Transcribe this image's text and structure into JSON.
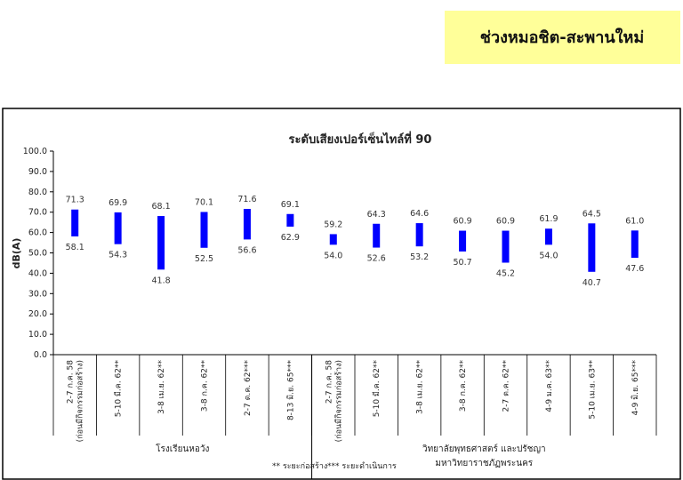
{
  "header": {
    "title": "ช่วงหมอชิต-สะพานใหม่"
  },
  "chart_data": {
    "type": "range-bar",
    "title": "ระดับเสียงเปอร์เซ็นไทล์ที่ 90",
    "y_label": "dB(A)",
    "categories": [
      [
        "2-7 ก.ค. 58",
        "(ก่อนมีกิจกรรมก่อสร้าง)"
      ],
      [
        "5-10 มี.ค. 62**"
      ],
      [
        "3-8 เม.ย. 62**"
      ],
      [
        "3-8 ก.ค. 62**"
      ],
      [
        "2-7 ต.ค. 62***"
      ],
      [
        "8-13 มิ.ย. 65***"
      ],
      [
        "2-7 ก.ค. 58",
        "(ก่อนมีกิจกรรมก่อสร้าง)"
      ],
      [
        "5-10 มี.ค. 62**"
      ],
      [
        "3-8 เม.ย. 62**"
      ],
      [
        "3-8 ก.ค. 62**"
      ],
      [
        "2-7 ต.ค. 62**"
      ],
      [
        "4-9 ม.ค. 63**"
      ],
      [
        "5-10 เม.ย. 63**"
      ],
      [
        "4-9 มิ.ย. 65***"
      ]
    ],
    "color": "#0000ff",
    "series": [
      {
        "values": [
          71.3,
          69.9,
          68.1,
          70.1,
          71.6,
          69.1,
          59.2,
          64.3,
          64.6,
          60.9,
          60.9,
          61.9,
          64.5,
          61.0
        ],
        "value_labels": [
          "71.3",
          "69.9",
          "68.1",
          "70.1",
          "71.6",
          "69.1",
          "59.2",
          "64.3",
          "64.6",
          "60.9",
          "60.9",
          "61.9",
          "64.5",
          "61.0"
        ]
      },
      {
        "values": [
          58.1,
          54.3,
          41.8,
          52.5,
          56.6,
          62.9,
          54.0,
          52.6,
          53.2,
          50.7,
          45.2,
          54.0,
          40.7,
          47.6
        ],
        "value_labels": [
          "58.1",
          "54.3",
          "41.8",
          "52.5",
          "56.6",
          "62.9",
          "54.0",
          "52.6",
          "53.2",
          "50.7",
          "45.2",
          "54.0",
          "40.7",
          "47.6"
        ]
      }
    ],
    "ylim": [
      0,
      100
    ],
    "yticks": [
      {
        "value": 0,
        "label": "0.0"
      },
      {
        "value": 10,
        "label": "10.0"
      },
      {
        "value": 20,
        "label": "20.0"
      },
      {
        "value": 30,
        "label": "30.0"
      },
      {
        "value": 40,
        "label": "40.0"
      },
      {
        "value": 50,
        "label": "50.0"
      },
      {
        "value": 60,
        "label": "60.0"
      },
      {
        "value": 70,
        "label": "70.0"
      },
      {
        "value": 80,
        "label": "80.0"
      },
      {
        "value": 90,
        "label": "90.0"
      },
      {
        "value": 100,
        "label": "100.0"
      }
    ],
    "groups": [
      {
        "label": [
          "โรงเรียนหอวัง"
        ],
        "count": 6
      },
      {
        "label": [
          "วิทยาลัยพุทธศาสตร์ และปรัชญา",
          "มหาวิทยาราชภัฏพระนคร"
        ],
        "count": 8
      }
    ],
    "footnotes": [
      "** ระยะก่อสร้าง",
      "*** ระยะดำเนินการ"
    ]
  }
}
